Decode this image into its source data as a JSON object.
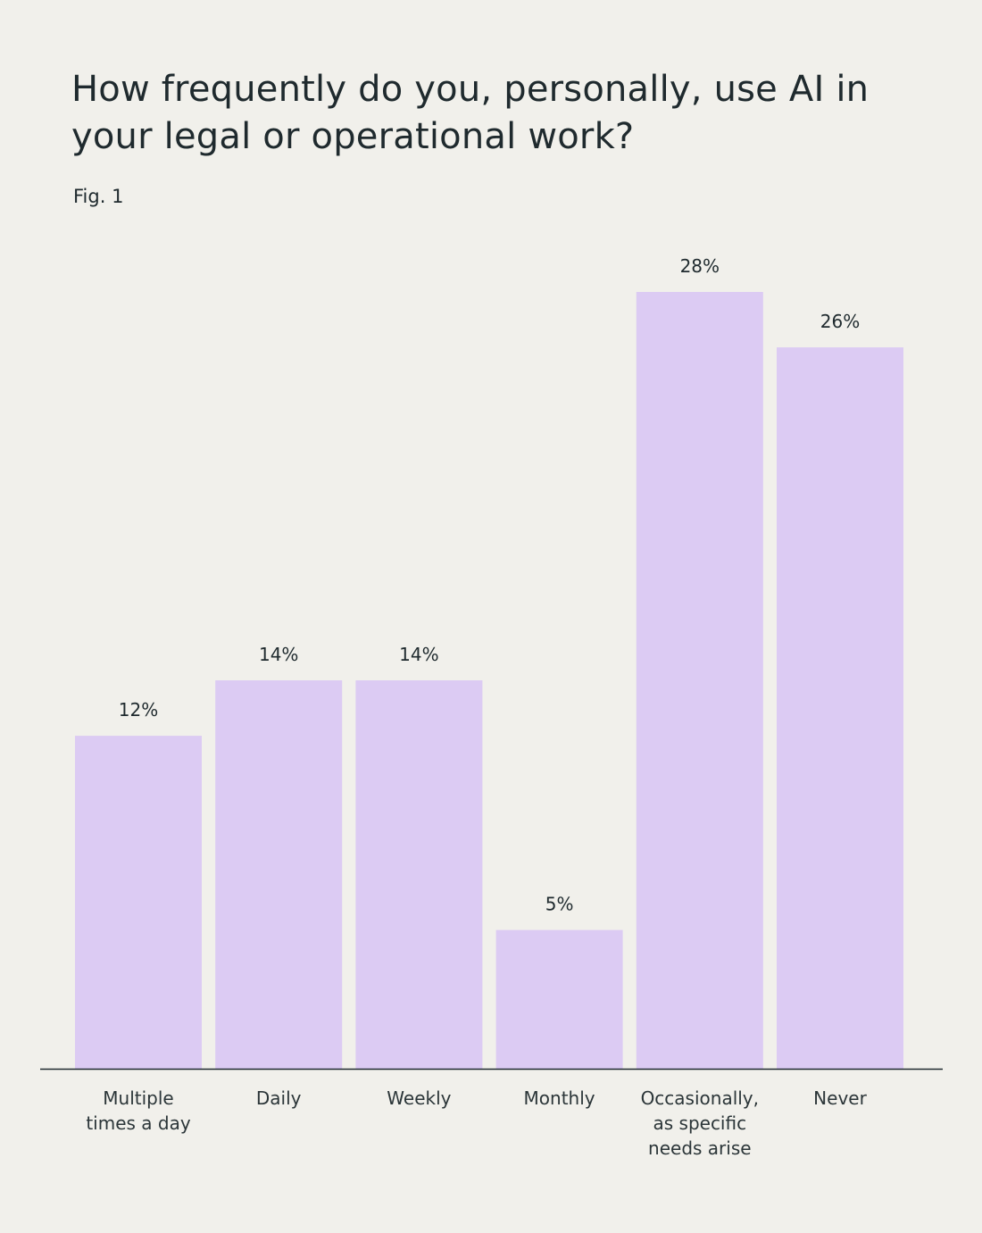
{
  "figure": {
    "title": "How frequently do you, personally, use AI in your legal or operational work?",
    "label": "Fig. 1"
  },
  "colors": {
    "background": "#f1f0eb",
    "bar": "#dccbf3",
    "axis": "#1f2a2e",
    "text": "#1f2a2e"
  },
  "chart_data": {
    "type": "bar",
    "title": "How frequently do you, personally, use AI in your legal or operational work?",
    "categories": [
      [
        "Multiple",
        "times a day"
      ],
      [
        "Daily"
      ],
      [
        "Weekly"
      ],
      [
        "Monthly"
      ],
      [
        "Occasionally,",
        "as specific",
        "needs arise"
      ],
      [
        "Never"
      ]
    ],
    "values": [
      12,
      14,
      14,
      5,
      28,
      26
    ],
    "value_labels": [
      "12%",
      "14%",
      "14%",
      "5%",
      "28%",
      "26%"
    ],
    "unit": "%",
    "ylim": [
      0,
      28
    ],
    "grid": false,
    "legend": "none"
  }
}
